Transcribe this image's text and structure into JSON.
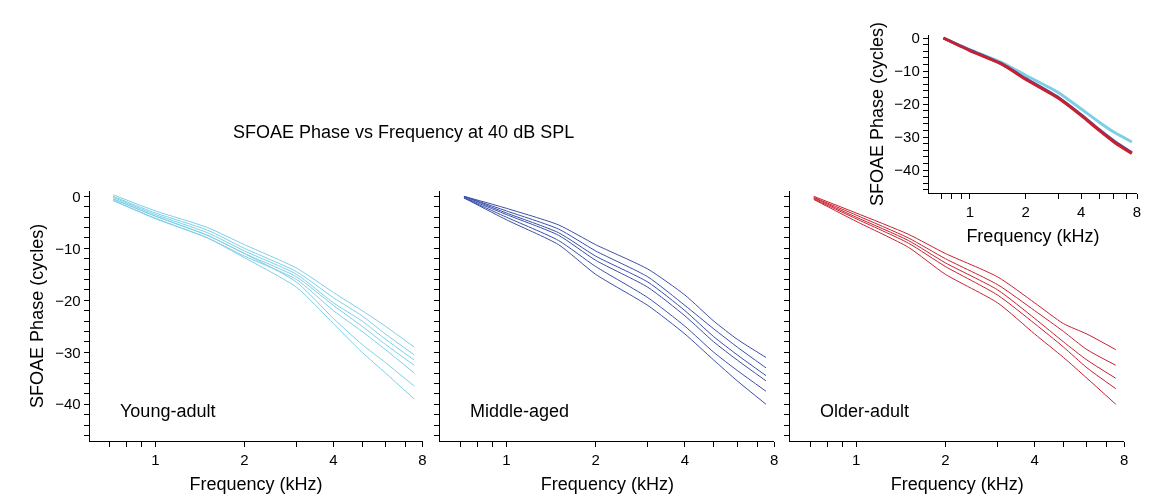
{
  "chart_data": [
    {
      "type": "line",
      "title": "SFOAE Phase vs Frequency at 40 dB SPL",
      "xlabel": "Frequency (kHz)",
      "ylabel": "SFOAE Phase (cycles)",
      "annotations": [
        "Young-adult"
      ],
      "log": "x",
      "marker": "none",
      "line_style": "solid",
      "xlim": [
        0.6,
        8
      ],
      "xticks": [
        {
          "value": 0.7,
          "label": null
        },
        {
          "value": 0.8,
          "label": null
        },
        {
          "value": 0.9,
          "label": null
        },
        1,
        2,
        {
          "value": 3,
          "label": null
        },
        4,
        {
          "value": 5,
          "label": null
        },
        {
          "value": 6,
          "label": null
        },
        {
          "value": 7,
          "label": null
        },
        8
      ],
      "ylim": [
        -47,
        1
      ],
      "yticks": [
        {
          "value": -46,
          "label": null
        },
        {
          "value": -44,
          "label": null
        },
        {
          "value": -42,
          "label": null
        },
        {
          "value": -40,
          "label": "−40"
        },
        {
          "value": -38,
          "label": null
        },
        {
          "value": -36,
          "label": null
        },
        {
          "value": -34,
          "label": null
        },
        {
          "value": -32,
          "label": null
        },
        {
          "value": -30,
          "label": "−30"
        },
        {
          "value": -28,
          "label": null
        },
        {
          "value": -26,
          "label": null
        },
        {
          "value": -24,
          "label": null
        },
        {
          "value": -22,
          "label": null
        },
        {
          "value": -20,
          "label": "−20"
        },
        {
          "value": -18,
          "label": null
        },
        {
          "value": -16,
          "label": null
        },
        {
          "value": -14,
          "label": null
        },
        {
          "value": -12,
          "label": null
        },
        {
          "value": -10,
          "label": "−10"
        },
        {
          "value": -8,
          "label": null
        },
        {
          "value": -6,
          "label": null
        },
        {
          "value": -4,
          "label": null
        },
        {
          "value": -2,
          "label": null
        },
        0
      ],
      "x": [
        0.72,
        1,
        1.5,
        2,
        3,
        4,
        5,
        6,
        7.5
      ],
      "series": [
        {
          "color": "#7dcfe6",
          "values": [
            0.3,
            -2.8,
            -6,
            -9.3,
            -13.8,
            -18.5,
            -22,
            -25,
            -29
          ]
        },
        {
          "color": "#7dcfe6",
          "values": [
            0,
            -3.2,
            -6.5,
            -10,
            -14.5,
            -19.5,
            -23,
            -26.5,
            -30.5
          ]
        },
        {
          "color": "#7dcfe6",
          "values": [
            -0.2,
            -3.5,
            -7,
            -10.5,
            -15,
            -20.5,
            -24,
            -27.5,
            -31.5
          ]
        },
        {
          "color": "#7dcfe6",
          "values": [
            -0.5,
            -3.8,
            -7.5,
            -11,
            -15.5,
            -21,
            -25,
            -28.5,
            -32.5
          ]
        },
        {
          "color": "#7dcfe6",
          "values": [
            -0.8,
            -4.2,
            -8,
            -11.5,
            -16,
            -22,
            -26,
            -29.5,
            -34
          ]
        },
        {
          "color": "#7dcfe6",
          "values": [
            -0.5,
            -3.8,
            -7.5,
            -11,
            -16.5,
            -23.5,
            -28.5,
            -32,
            -36.5
          ]
        },
        {
          "color": "#7dcfe6",
          "values": [
            -0.8,
            -4.3,
            -8,
            -11.8,
            -17.5,
            -24.5,
            -30,
            -34,
            -39
          ]
        }
      ]
    },
    {
      "type": "line",
      "xlabel": "Frequency (kHz)",
      "annotations": [
        "Middle-aged"
      ],
      "log": "x",
      "marker": "none",
      "line_style": "solid",
      "tick_labels": "x",
      "xlim": [
        0.6,
        8
      ],
      "xticks": [
        {
          "value": 0.7,
          "label": null
        },
        {
          "value": 0.8,
          "label": null
        },
        {
          "value": 0.9,
          "label": null
        },
        1,
        2,
        {
          "value": 3,
          "label": null
        },
        4,
        {
          "value": 5,
          "label": null
        },
        {
          "value": 6,
          "label": null
        },
        {
          "value": 7,
          "label": null
        },
        8
      ],
      "ylim": [
        -47,
        1
      ],
      "x": [
        0.72,
        1,
        1.5,
        2,
        3,
        4,
        5,
        6,
        7.5
      ],
      "series": [
        {
          "color": "#3a4fa8",
          "values": [
            0,
            -2.3,
            -5.5,
            -9.3,
            -14,
            -19,
            -24,
            -27.5,
            -31
          ]
        },
        {
          "color": "#3a4fa8",
          "values": [
            0,
            -2.8,
            -6.3,
            -10.5,
            -15.5,
            -21,
            -25.5,
            -29,
            -33
          ]
        },
        {
          "color": "#3a4fa8",
          "values": [
            0,
            -3.2,
            -7,
            -11.5,
            -16.5,
            -22,
            -27,
            -30.5,
            -34.5
          ]
        },
        {
          "color": "#3a4fa8",
          "values": [
            -0.2,
            -3.5,
            -7.5,
            -12.3,
            -17.5,
            -23,
            -28,
            -31.5,
            -35.5
          ]
        },
        {
          "color": "#3a4fa8",
          "values": [
            -0.3,
            -4,
            -8.5,
            -13.5,
            -19.5,
            -25,
            -30,
            -33.5,
            -37.5
          ]
        },
        {
          "color": "#3a4fa8",
          "values": [
            -0.3,
            -4.5,
            -9.3,
            -15,
            -21,
            -26.5,
            -31.5,
            -35.5,
            -40
          ]
        }
      ]
    },
    {
      "type": "line",
      "xlabel": "Frequency (kHz)",
      "annotations": [
        "Older-adult"
      ],
      "log": "x",
      "marker": "none",
      "line_style": "solid",
      "tick_labels": "x",
      "xlim": [
        0.6,
        8
      ],
      "xticks": [
        {
          "value": 0.7,
          "label": null
        },
        {
          "value": 0.8,
          "label": null
        },
        {
          "value": 0.9,
          "label": null
        },
        1,
        2,
        {
          "value": 3,
          "label": null
        },
        4,
        {
          "value": 5,
          "label": null
        },
        {
          "value": 6,
          "label": null
        },
        {
          "value": 7,
          "label": null
        },
        8
      ],
      "ylim": [
        -47,
        1
      ],
      "x": [
        0.72,
        1,
        1.5,
        2,
        3,
        4,
        5,
        6,
        7.5
      ],
      "series": [
        {
          "color": "#c8202f",
          "values": [
            0,
            -3.2,
            -7.3,
            -11,
            -15.5,
            -20.5,
            -24.5,
            -26.5,
            -29.5
          ]
        },
        {
          "color": "#c8202f",
          "values": [
            -0.2,
            -3.6,
            -8,
            -12,
            -17,
            -22,
            -26,
            -29.5,
            -32.5
          ]
        },
        {
          "color": "#c8202f",
          "values": [
            -0.3,
            -4,
            -8.5,
            -12.8,
            -18,
            -23.5,
            -28,
            -31.5,
            -35
          ]
        },
        {
          "color": "#c8202f",
          "values": [
            -0.5,
            -4.3,
            -9,
            -13.5,
            -19,
            -24.5,
            -29,
            -33,
            -37
          ]
        },
        {
          "color": "#c8202f",
          "values": [
            -0.6,
            -4.8,
            -9.8,
            -15,
            -20.5,
            -26.5,
            -31,
            -35,
            -40
          ]
        }
      ]
    },
    {
      "type": "line",
      "xlabel": "Frequency (kHz)",
      "ylabel": "SFOAE Phase (cycles)",
      "log": "x",
      "marker": "none",
      "line_style": "solid",
      "xlim": [
        0.6,
        8
      ],
      "xticks": [
        {
          "value": 0.7,
          "label": null
        },
        {
          "value": 0.8,
          "label": null
        },
        {
          "value": 0.9,
          "label": null
        },
        1,
        2,
        {
          "value": 3,
          "label": null
        },
        4,
        {
          "value": 5,
          "label": null
        },
        {
          "value": 6,
          "label": null
        },
        {
          "value": 7,
          "label": null
        },
        8
      ],
      "ylim": [
        -47,
        1
      ],
      "yticks": [
        {
          "value": -46,
          "label": null
        },
        {
          "value": -44,
          "label": null
        },
        {
          "value": -42,
          "label": null
        },
        {
          "value": -40,
          "label": "−40"
        },
        {
          "value": -38,
          "label": null
        },
        {
          "value": -36,
          "label": null
        },
        {
          "value": -34,
          "label": null
        },
        {
          "value": -32,
          "label": null
        },
        {
          "value": -30,
          "label": "−30"
        },
        {
          "value": -28,
          "label": null
        },
        {
          "value": -26,
          "label": null
        },
        {
          "value": -24,
          "label": null
        },
        {
          "value": -22,
          "label": null
        },
        {
          "value": -20,
          "label": "−20"
        },
        {
          "value": -18,
          "label": null
        },
        {
          "value": -16,
          "label": null
        },
        {
          "value": -14,
          "label": null
        },
        {
          "value": -12,
          "label": null
        },
        {
          "value": -10,
          "label": "−10"
        },
        {
          "value": -8,
          "label": null
        },
        {
          "value": -6,
          "label": null
        },
        {
          "value": -4,
          "label": null
        },
        {
          "value": -2,
          "label": null
        },
        0
      ],
      "x": [
        0.72,
        1,
        1.5,
        2,
        3,
        4,
        5,
        6,
        7.5
      ],
      "series": [
        {
          "color": "#7dcfe6",
          "values": [
            0,
            -3.5,
            -7.5,
            -11.3,
            -16.5,
            -21.5,
            -25.5,
            -28.5,
            -31.5
          ]
        },
        {
          "color": "#3a4fa8",
          "values": [
            0,
            -3.7,
            -8,
            -12.3,
            -18,
            -23.3,
            -27.8,
            -31.2,
            -34.8
          ]
        },
        {
          "color": "#c8202f",
          "values": [
            0,
            -3.8,
            -8,
            -12.5,
            -18.2,
            -23.5,
            -28,
            -31.5,
            -35
          ]
        }
      ]
    }
  ]
}
